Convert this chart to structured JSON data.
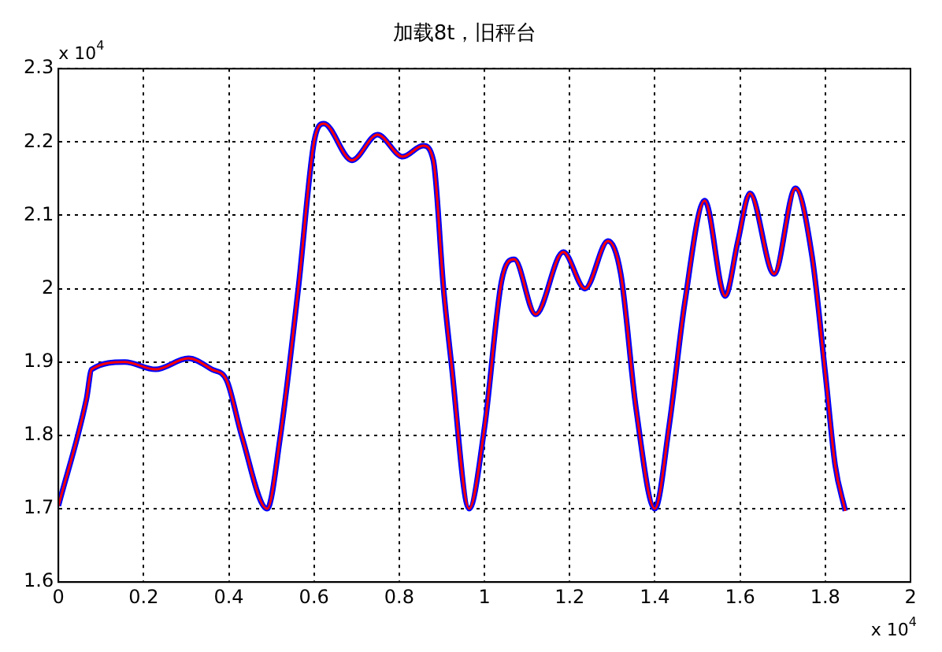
{
  "chart_data": {
    "type": "line",
    "title": "加载8t，旧秤台",
    "annotations": [
      "x 10$^{4}$",
      "x 10$^{4}$"
    ],
    "x": [
      0,
      0.066,
      0.078,
      0.156,
      0.228,
      0.305,
      0.36,
      0.395,
      0.43,
      0.49,
      0.52,
      0.563,
      0.6,
      0.623,
      0.689,
      0.749,
      0.808,
      0.856,
      0.88,
      0.904,
      0.922,
      0.964,
      1.0,
      1.04,
      1.07,
      1.12,
      1.185,
      1.236,
      1.29,
      1.32,
      1.356,
      1.4,
      1.434,
      1.47,
      1.517,
      1.565,
      1.595,
      1.623,
      1.68,
      1.73,
      1.769,
      1.8,
      1.823,
      1.847
    ],
    "series": [
      {
        "color": "#0000ff",
        "values": [
          1.704,
          1.85,
          1.89,
          1.9,
          1.89,
          1.905,
          1.89,
          1.875,
          1.8,
          1.7,
          1.795,
          2.0,
          2.2,
          2.225,
          2.175,
          2.21,
          2.18,
          2.195,
          2.175,
          2.0,
          1.9,
          1.7,
          1.81,
          2.01,
          2.04,
          1.965,
          2.05,
          2.0,
          2.065,
          2.02,
          1.836,
          1.7,
          1.815,
          1.98,
          2.12,
          1.99,
          2.065,
          2.13,
          2.02,
          2.137,
          2.044,
          1.885,
          1.76,
          1.697
        ]
      },
      {
        "color": "#ff0000",
        "values": [
          1.704,
          1.85,
          1.89,
          1.9,
          1.89,
          1.905,
          1.89,
          1.875,
          1.8,
          1.7,
          1.795,
          2.0,
          2.2,
          2.225,
          2.175,
          2.21,
          2.18,
          2.195,
          2.175,
          2.0,
          1.9,
          1.7,
          1.81,
          2.01,
          2.04,
          1.965,
          2.05,
          2.0,
          2.065,
          2.02,
          1.836,
          1.7,
          1.815,
          1.98,
          2.12,
          1.99,
          2.065,
          2.13,
          2.02,
          2.137,
          2.044,
          1.885,
          1.76,
          1.697
        ]
      }
    ],
    "xlim": [
      0,
      2
    ],
    "xticks": [
      0,
      0.2,
      0.4,
      0.6,
      0.8,
      1,
      1.2,
      1.4,
      1.6,
      1.8,
      2
    ],
    "ylim": [
      1.6,
      2.3
    ],
    "yticks": [
      1.6,
      1.7,
      1.8,
      1.9,
      2,
      2.1,
      2.2,
      2.3
    ],
    "grid": true,
    "legend": false,
    "marker": "none",
    "line_style": "solid"
  }
}
